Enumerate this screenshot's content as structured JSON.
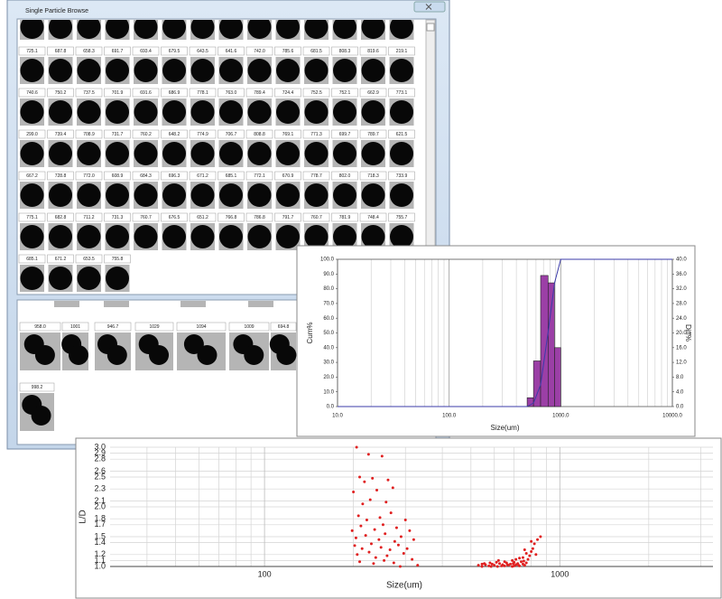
{
  "window": {
    "title": "Single Particle Browse",
    "rows": [
      [
        "725.1",
        "687.8",
        "658.3",
        "691.7",
        "693.4",
        "679.5",
        "643.5",
        "641.6",
        "742.0",
        "785.6",
        "681.5",
        "808.3",
        "819.6",
        "219.1"
      ],
      [
        "740.6",
        "750.2",
        "737.5",
        "701.9",
        "691.6",
        "686.9",
        "778.1",
        "763.0",
        "789.4",
        "724.4",
        "752.5",
        "752.1",
        "662.9",
        "773.1"
      ],
      [
        "299.0",
        "739.4",
        "708.9",
        "731.7",
        "760.2",
        "648.2",
        "774.9",
        "706.7",
        "808.8",
        "769.1",
        "771.3",
        "699.7",
        "789.7",
        "621.5"
      ],
      [
        "667.2",
        "728.8",
        "772.0",
        "608.9",
        "684.3",
        "696.3",
        "671.2",
        "685.1",
        "772.1",
        "670.9",
        "778.7",
        "802.0",
        "718.3",
        "733.9"
      ],
      [
        "775.1",
        "682.8",
        "711.2",
        "731.3",
        "760.7",
        "676.5",
        "651.2",
        "766.8",
        "786.8",
        "791.7",
        "760.7",
        "781.9",
        "748.4",
        "755.7"
      ],
      [
        "685.1",
        "671.2",
        "653.5",
        "755.8"
      ]
    ],
    "lower_labels": [
      "958.0",
      "1001",
      "946.7",
      "1029",
      "1094",
      "1009",
      "694.8",
      "998.2"
    ]
  },
  "chart_data": [
    {
      "type": "histogram",
      "xlabel": "Size(um)",
      "ylabel": "Cum%",
      "y2label": "Diff%",
      "xscale": "log",
      "grid": "x",
      "xlim": [
        10,
        10000
      ],
      "xticks": [
        {
          "value": 10,
          "label": "10.0"
        },
        {
          "value": 100,
          "label": "100.0"
        },
        {
          "value": 1000,
          "label": "1000.0"
        },
        {
          "value": 10000,
          "label": "10000.0"
        }
      ],
      "xminorticks": [
        20,
        30,
        40,
        50,
        60,
        70,
        80,
        90,
        200,
        300,
        400,
        500,
        600,
        700,
        800,
        900,
        2000,
        3000,
        4000,
        5000,
        6000,
        7000,
        8000,
        9000
      ],
      "ylim": [
        0,
        100
      ],
      "yticks": [
        {
          "value": 0,
          "label": "0.0"
        },
        {
          "value": 10,
          "label": "10.0"
        },
        {
          "value": 20,
          "label": "20.0"
        },
        {
          "value": 30,
          "label": "30.0"
        },
        {
          "value": 40,
          "label": "40.0"
        },
        {
          "value": 50,
          "label": "50.0"
        },
        {
          "value": 60,
          "label": "60.0"
        },
        {
          "value": 70,
          "label": "70.0"
        },
        {
          "value": 80,
          "label": "80.0"
        },
        {
          "value": 90,
          "label": "90.0"
        },
        {
          "value": 100,
          "label": "100.0"
        }
      ],
      "y2lim": [
        0,
        40
      ],
      "y2ticks": [
        {
          "value": 0,
          "label": "0.0"
        },
        {
          "value": 4,
          "label": "4.0"
        },
        {
          "value": 8,
          "label": "8.0"
        },
        {
          "value": 12,
          "label": "12.0"
        },
        {
          "value": 16,
          "label": "16.0"
        },
        {
          "value": 20,
          "label": "20.0"
        },
        {
          "value": 24,
          "label": "24.0"
        },
        {
          "value": 28,
          "label": "28.0"
        },
        {
          "value": 32,
          "label": "32.0"
        },
        {
          "value": 36,
          "label": "36.0"
        },
        {
          "value": 40,
          "label": "40.0"
        }
      ],
      "bars": {
        "color": "#9b3fa6",
        "axis": "y2",
        "bins": [
          500,
          570,
          660,
          770,
          880,
          1000
        ],
        "values": [
          2.4,
          12.4,
          35.6,
          33.6,
          16.0
        ]
      },
      "line": {
        "color": "#3b3ba8",
        "x": [
          10,
          400,
          500,
          570,
          660,
          770,
          880,
          1000,
          10000
        ],
        "values": [
          0,
          0,
          0,
          2.4,
          14.8,
          50.4,
          84,
          100,
          100
        ]
      }
    },
    {
      "type": "scatter",
      "xlabel": "Size(um)",
      "ylabel": "L/D",
      "xscale": "log",
      "grid": "both",
      "color": "#e02020",
      "xlim": [
        30,
        3300
      ],
      "xticks": [
        100,
        1000
      ],
      "xminorticks": [
        40,
        50,
        60,
        70,
        80,
        90,
        200,
        300,
        400,
        500,
        600,
        700,
        800,
        900,
        2000,
        3000
      ],
      "ylim": [
        1,
        3
      ],
      "yticks": [
        {
          "value": 1,
          "label": "1.0"
        },
        1.1,
        1.2,
        1.4,
        1.5,
        1.7,
        1.8,
        {
          "value": 2,
          "label": "2.0"
        },
        2.1,
        2.3,
        2.5,
        2.6,
        2.8,
        2.9,
        {
          "value": 3,
          "label": "3.0"
        }
      ],
      "x": [
        205,
        225,
        250,
        210,
        218,
        232,
        262,
        200,
        240,
        272,
        215,
        228,
        258,
        208,
        222,
        246,
        268,
        300,
        198,
        212,
        236,
        252,
        280,
        310,
        204,
        220,
        244,
        256,
        276,
        290,
        320,
        202,
        214,
        230,
        248,
        266,
        284,
        304,
        206,
        226,
        238,
        260,
        296,
        316,
        210,
        234,
        254,
        274,
        330,
        288,
        530,
        545,
        560,
        575,
        590,
        600,
        615,
        625,
        640,
        650,
        660,
        670,
        680,
        690,
        700,
        710,
        720,
        730,
        740,
        750,
        760,
        770,
        555,
        585,
        610,
        635,
        665,
        695,
        725,
        755,
        780,
        790,
        800,
        810,
        770,
        750,
        730,
        820,
        840,
        860,
        800,
        760,
        710,
        690,
        650,
        830,
        620,
        580,
        545,
        700
      ],
      "values": [
        3.0,
        2.88,
        2.85,
        2.5,
        2.42,
        2.48,
        2.45,
        2.25,
        2.28,
        2.32,
        2.05,
        2.12,
        2.08,
        1.85,
        1.78,
        1.82,
        1.9,
        1.78,
        1.6,
        1.68,
        1.62,
        1.7,
        1.65,
        1.6,
        1.48,
        1.52,
        1.45,
        1.55,
        1.42,
        1.5,
        1.45,
        1.35,
        1.3,
        1.38,
        1.32,
        1.28,
        1.36,
        1.3,
        1.2,
        1.24,
        1.15,
        1.18,
        1.22,
        1.12,
        1.08,
        1.05,
        1.1,
        1.06,
        1.02,
        1.0,
        1.02,
        1.0,
        1.03,
        1.01,
        1.04,
        1.02,
        1.0,
        1.05,
        1.03,
        1.01,
        1.06,
        1.02,
        1.04,
        1.0,
        1.07,
        1.03,
        1.05,
        1.01,
        1.08,
        1.04,
        1.02,
        1.06,
        1.05,
        1.0,
        1.07,
        1.01,
        1.03,
        1.05,
        1.02,
        1.09,
        1.12,
        1.18,
        1.25,
        1.3,
        1.22,
        1.15,
        1.14,
        1.38,
        1.45,
        1.5,
        1.42,
        1.28,
        1.12,
        1.1,
        1.08,
        1.2,
        1.1,
        1.06,
        1.04,
        1.01
      ]
    }
  ]
}
